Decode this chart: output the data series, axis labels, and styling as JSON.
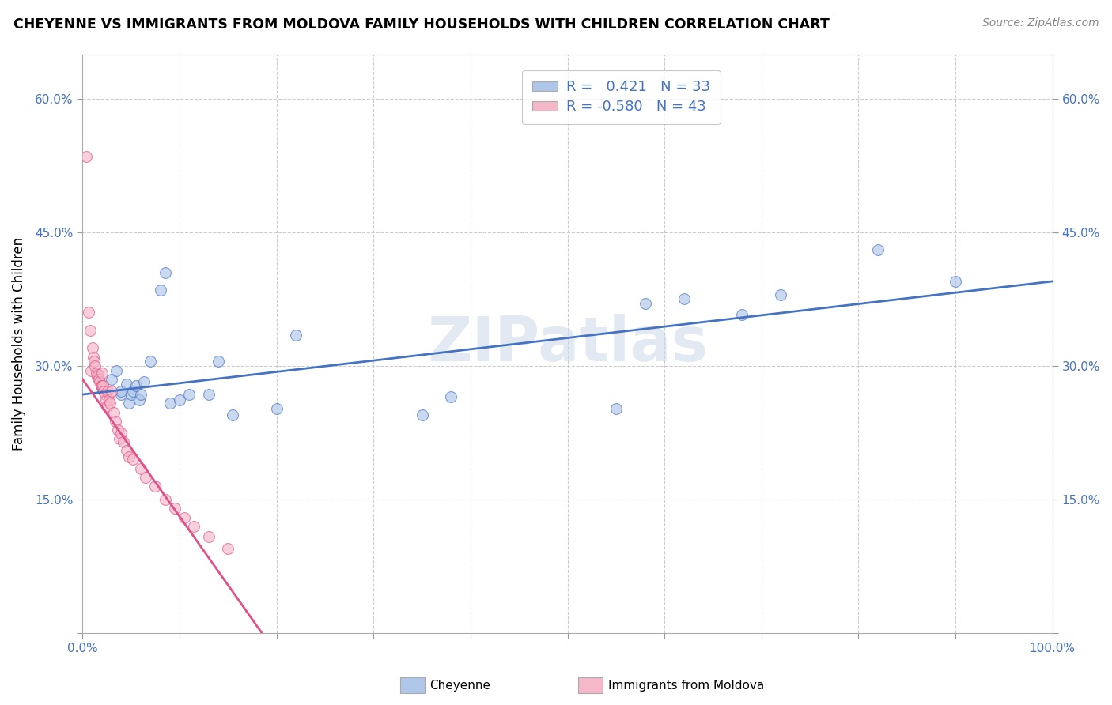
{
  "title": "CHEYENNE VS IMMIGRANTS FROM MOLDOVA FAMILY HOUSEHOLDS WITH CHILDREN CORRELATION CHART",
  "source": "Source: ZipAtlas.com",
  "ylabel": "Family Households with Children",
  "xlim": [
    0.0,
    1.0
  ],
  "ylim": [
    0.0,
    0.65
  ],
  "xticks": [
    0.0,
    0.1,
    0.2,
    0.3,
    0.4,
    0.5,
    0.6,
    0.7,
    0.8,
    0.9,
    1.0
  ],
  "yticks": [
    0.0,
    0.15,
    0.3,
    0.45,
    0.6
  ],
  "ytick_labels": [
    "",
    "15.0%",
    "30.0%",
    "45.0%",
    "60.0%"
  ],
  "xtick_labels": [
    "0.0%",
    "",
    "",
    "",
    "",
    "",
    "",
    "",
    "",
    "",
    "100.0%"
  ],
  "grid_color": "#cccccc",
  "watermark": "ZIPatlas",
  "cheyenne_color": "#aec6e8",
  "moldova_color": "#f4b8c8",
  "trendline_blue": "#4472c4",
  "trendline_pink": "#e0508a",
  "cheyenne_scatter_x": [
    0.02,
    0.03,
    0.035,
    0.04,
    0.04,
    0.045,
    0.048,
    0.05,
    0.052,
    0.055,
    0.058,
    0.06,
    0.063,
    0.07,
    0.08,
    0.085,
    0.09,
    0.1,
    0.11,
    0.13,
    0.14,
    0.155,
    0.2,
    0.22,
    0.35,
    0.38,
    0.55,
    0.58,
    0.62,
    0.68,
    0.72,
    0.82,
    0.9
  ],
  "cheyenne_scatter_y": [
    0.275,
    0.285,
    0.295,
    0.268,
    0.272,
    0.28,
    0.258,
    0.268,
    0.272,
    0.278,
    0.262,
    0.268,
    0.282,
    0.305,
    0.385,
    0.405,
    0.258,
    0.262,
    0.268,
    0.268,
    0.305,
    0.245,
    0.252,
    0.335,
    0.245,
    0.265,
    0.252,
    0.37,
    0.375,
    0.358,
    0.38,
    0.43,
    0.395
  ],
  "moldova_scatter_x": [
    0.004,
    0.006,
    0.008,
    0.009,
    0.01,
    0.011,
    0.012,
    0.013,
    0.014,
    0.015,
    0.016,
    0.017,
    0.018,
    0.019,
    0.02,
    0.02,
    0.021,
    0.022,
    0.023,
    0.024,
    0.025,
    0.026,
    0.027,
    0.028,
    0.03,
    0.032,
    0.034,
    0.036,
    0.038,
    0.04,
    0.042,
    0.045,
    0.048,
    0.052,
    0.06,
    0.065,
    0.075,
    0.085,
    0.095,
    0.105,
    0.115,
    0.13,
    0.15
  ],
  "moldova_scatter_y": [
    0.535,
    0.36,
    0.34,
    0.295,
    0.32,
    0.31,
    0.305,
    0.3,
    0.292,
    0.288,
    0.29,
    0.285,
    0.282,
    0.278,
    0.292,
    0.278,
    0.278,
    0.272,
    0.268,
    0.262,
    0.255,
    0.272,
    0.262,
    0.258,
    0.272,
    0.248,
    0.238,
    0.228,
    0.218,
    0.225,
    0.215,
    0.205,
    0.198,
    0.195,
    0.185,
    0.175,
    0.165,
    0.15,
    0.14,
    0.13,
    0.12,
    0.108,
    0.095
  ],
  "blue_trend_x": [
    0.0,
    1.0
  ],
  "blue_trend_y": [
    0.268,
    0.395
  ],
  "pink_trend_x": [
    0.0,
    0.185
  ],
  "pink_trend_y": [
    0.285,
    0.0
  ],
  "dot_size": 100,
  "dot_alpha": 0.65,
  "dot_linewidth": 0.8
}
